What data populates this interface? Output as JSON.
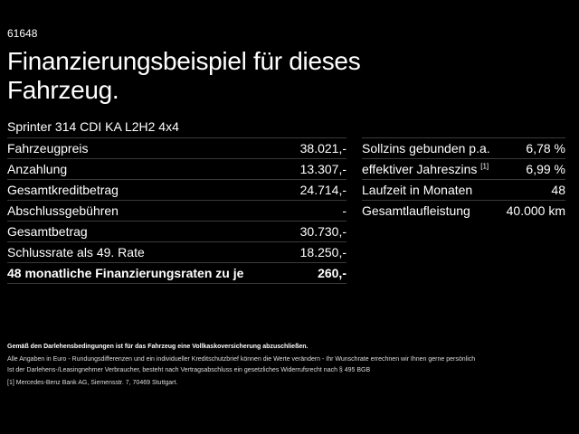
{
  "code": "61648",
  "title": "Finanzierungsbeispiel für dieses Fahrzeug.",
  "model": "Sprinter 314 CDI KA L2H2 4x4",
  "left_rows": [
    {
      "label": "Fahrzeugpreis",
      "value": "38.021,-"
    },
    {
      "label": "Anzahlung",
      "value": "13.307,-"
    },
    {
      "label": "Gesamtkreditbetrag",
      "value": "24.714,-"
    },
    {
      "label": "Abschlussgebühren",
      "value": "-"
    },
    {
      "label": "Gesamtbetrag",
      "value": "30.730,-"
    },
    {
      "label": "Schlussrate als 49. Rate",
      "value": "18.250,-"
    },
    {
      "label": "48 monatliche Finanzierungsraten zu je",
      "value": "260,-"
    }
  ],
  "right_rows": [
    {
      "label": "Sollzins gebunden p.a.",
      "value": "6,78 %"
    },
    {
      "label": "effektiver Jahreszins",
      "sup": "[1]",
      "value": "6,99 %"
    },
    {
      "label": "Laufzeit in Monaten",
      "value": "48"
    },
    {
      "label": "Gesamtlaufleistung",
      "value": "40.000 km"
    }
  ],
  "footer": {
    "insurance": "Gemäß den Darlehensbedingungen ist für das Fahrzeug eine Vollkaskoversicherung abzuschließen.",
    "line1": "Alle Angaben in Euro - Rundungsdifferenzen und ein individueller Kreditschutzbrief können die Werte verändern - Ihr Wunschrate errechnen wir Ihnen gerne persönlich",
    "line2": "Ist der Darlehens-/Leasingnehmer Verbraucher, besteht nach Vertragsabschluss ein gesetzliches Widerrufsrecht nach § 495 BGB",
    "note_mark": "[1]",
    "note": "Mercedes-Benz Bank AG, Siemensstr. 7, 70469 Stuttgart."
  }
}
